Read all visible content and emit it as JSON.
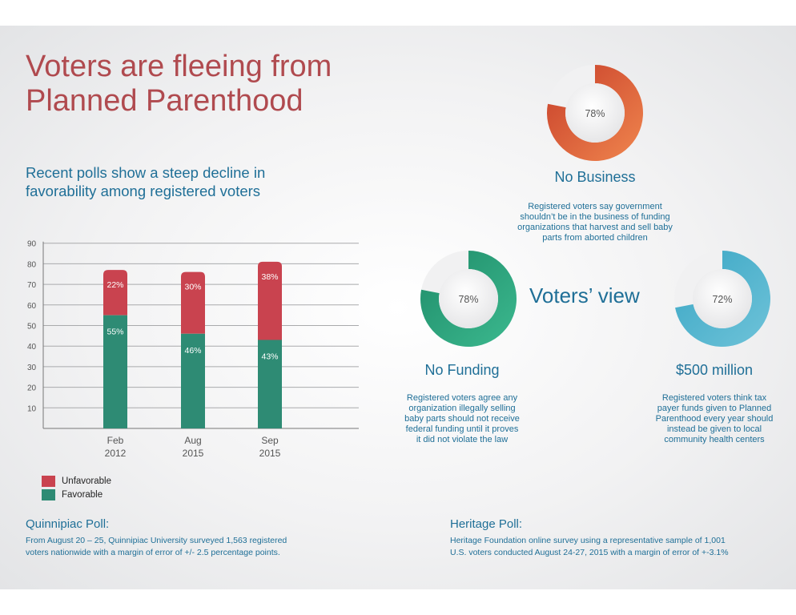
{
  "title": "Voters are fleeing from Planned Parenthood",
  "subtitle": "Recent polls show a steep decline in favorability among registered voters",
  "colors": {
    "unfavorable": "#c9434f",
    "favorable": "#2e8b74",
    "title": "#b04a4f",
    "text_blue": "#1f6f97"
  },
  "chart_data": {
    "type": "bar",
    "stacked": true,
    "categories": [
      "Feb 2012",
      "Aug 2015",
      "Sep 2015"
    ],
    "category_lines": [
      [
        "Feb",
        "2012"
      ],
      [
        "Aug",
        "2015"
      ],
      [
        "Sep",
        "2015"
      ]
    ],
    "series": [
      {
        "name": "Favorable",
        "values": [
          55,
          46,
          43
        ],
        "labels": [
          "55%",
          "46%",
          "43%"
        ],
        "color": "#2e8b74"
      },
      {
        "name": "Unfavorable",
        "values": [
          22,
          30,
          38
        ],
        "labels": [
          "22%",
          "30%",
          "38%"
        ],
        "color": "#c9434f"
      }
    ],
    "yticks": [
      10,
      20,
      30,
      40,
      50,
      60,
      70,
      80,
      90
    ],
    "ylim": [
      0,
      90
    ],
    "grid": true,
    "legend": "bottom-left"
  },
  "legend": {
    "unfavorable": "Unfavorable",
    "favorable": "Favorable"
  },
  "center_label": "Voters’ view",
  "donuts": {
    "no_business": {
      "title": "No Business",
      "value": 78,
      "label": "78%",
      "description": [
        "Registered voters say government",
        "shouldn’t be in the business of funding",
        "organizations that harvest and sell baby",
        "parts from aborted children"
      ]
    },
    "no_funding": {
      "title": "No Funding",
      "value": 78,
      "label": "78%",
      "description": [
        "Registered voters agree any",
        "organization illegally selling",
        "baby parts should not receive",
        "federal funding until it proves",
        "it did not violate the law"
      ]
    },
    "five_hundred_million": {
      "title": "$500 million",
      "value": 72,
      "label": "72%",
      "description": [
        "Registered voters think tax",
        "payer funds given to Planned",
        "Parenthood every year should",
        "instead be given to local",
        "community health centers"
      ]
    }
  },
  "polls": {
    "quinnipiac": {
      "title": "Quinnipiac Poll:",
      "lines": [
        "From August 20 – 25, Quinnipiac University surveyed 1,563 registered",
        "voters nationwide with a margin of error of +/- 2.5 percentage points."
      ]
    },
    "heritage": {
      "title": "Heritage Poll:",
      "lines": [
        "Heritage Foundation online survey using a representative sample of 1,001",
        "U.S. voters conducted August 24-27, 2015 with a margin of error of +-3.1%"
      ]
    }
  }
}
